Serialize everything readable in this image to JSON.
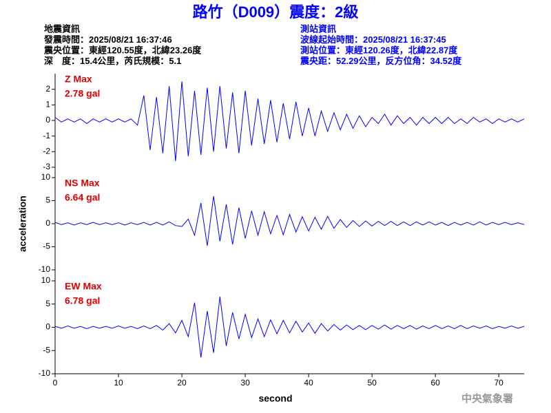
{
  "title": "路竹（D009）震度：2級",
  "info_left": [
    "地震資訊",
    "發震時間：2025/08/21 16:37:46",
    "震央位置：東經120.55度，北緯23.26度",
    "深　度：15.4公里，芮氏規模：5.1"
  ],
  "info_right": [
    "測站資訊",
    "波線起始時間：2025/08/21 16:37:45",
    "測站位置：東經120.26度，北緯22.87度",
    "震央距：52.29公里，反方位角：34.52度"
  ],
  "ylabel": "acceleration",
  "xlabel": "second",
  "watermark": "中央氣象署",
  "chart_data": [
    {
      "type": "line",
      "label": "Z Max",
      "max_label": "2.78 gal",
      "color": "#0000ff",
      "xlim": [
        0,
        74
      ],
      "ylim": [
        -3,
        3
      ],
      "yticks": [
        -3,
        -2,
        -1,
        0,
        1,
        2
      ],
      "x": [
        0,
        1,
        2,
        3,
        4,
        5,
        6,
        7,
        8,
        9,
        10,
        11,
        12,
        13,
        14,
        15,
        16,
        17,
        18,
        19,
        20,
        21,
        22,
        23,
        24,
        25,
        26,
        27,
        28,
        29,
        30,
        31,
        32,
        33,
        34,
        35,
        36,
        37,
        38,
        39,
        40,
        41,
        42,
        43,
        44,
        45,
        46,
        47,
        48,
        49,
        50,
        51,
        52,
        53,
        54,
        55,
        56,
        57,
        58,
        59,
        60,
        61,
        62,
        63,
        64,
        65,
        66,
        67,
        68,
        69,
        70,
        71,
        72,
        73,
        74
      ],
      "values": [
        0.2,
        -0.1,
        0.1,
        -0.1,
        0.1,
        -0.2,
        0.1,
        -0.1,
        0.1,
        -0.1,
        0.1,
        -0.1,
        0.1,
        -0.3,
        1.6,
        -1.9,
        1.5,
        -2.1,
        2.2,
        -2.6,
        2.5,
        -2.3,
        1.9,
        -2.2,
        2.1,
        -2.0,
        2.2,
        -1.8,
        1.8,
        -2.1,
        1.9,
        -1.6,
        1.4,
        -1.5,
        1.3,
        -1.4,
        1.1,
        -1.2,
        1.2,
        -1.0,
        0.8,
        -1.0,
        0.6,
        -0.7,
        0.5,
        -0.6,
        0.4,
        -0.5,
        0.3,
        -0.4,
        0.2,
        -0.2,
        0.4,
        -0.3,
        0.3,
        -0.2,
        0.2,
        -0.3,
        0.2,
        -0.2,
        0.2,
        -0.2,
        0.2,
        -0.2,
        0.1,
        -0.2,
        0.2,
        -0.1,
        0.1,
        -0.2,
        0.1,
        -0.1,
        0.1,
        -0.1,
        0.1
      ]
    },
    {
      "type": "line",
      "label": "NS Max",
      "max_label": "6.64 gal",
      "color": "#0000ff",
      "xlim": [
        0,
        74
      ],
      "ylim": [
        -10,
        10
      ],
      "yticks": [
        -10,
        -5,
        0,
        5,
        10
      ],
      "x": [
        0,
        1,
        2,
        3,
        4,
        5,
        6,
        7,
        8,
        9,
        10,
        11,
        12,
        13,
        14,
        15,
        16,
        17,
        18,
        19,
        20,
        21,
        22,
        23,
        24,
        25,
        26,
        27,
        28,
        29,
        30,
        31,
        32,
        33,
        34,
        35,
        36,
        37,
        38,
        39,
        40,
        41,
        42,
        43,
        44,
        45,
        46,
        47,
        48,
        49,
        50,
        51,
        52,
        53,
        54,
        55,
        56,
        57,
        58,
        59,
        60,
        61,
        62,
        63,
        64,
        65,
        66,
        67,
        68,
        69,
        70,
        71,
        72,
        73,
        74
      ],
      "values": [
        0.3,
        -0.2,
        0.2,
        -0.3,
        0.2,
        -0.2,
        0.3,
        -0.2,
        0.2,
        -0.2,
        0.2,
        -0.3,
        0.2,
        -0.2,
        0.3,
        -0.3,
        0.3,
        -0.3,
        0.4,
        -0.4,
        -0.6,
        1.0,
        -2.5,
        4.5,
        -4.8,
        6.0,
        -3.8,
        4.2,
        -4.5,
        3.5,
        -3.2,
        2.8,
        -2.5,
        2.6,
        -2.2,
        1.8,
        -2.4,
        2.0,
        -1.8,
        1.5,
        -1.6,
        1.4,
        -1.2,
        1.6,
        -1.0,
        0.9,
        -0.8,
        0.7,
        -0.6,
        0.6,
        -0.5,
        0.5,
        -0.4,
        0.5,
        -0.4,
        0.4,
        -0.4,
        0.4,
        -0.3,
        0.4,
        -0.3,
        0.3,
        -0.4,
        0.3,
        -0.3,
        0.3,
        -0.3,
        0.4,
        -0.3,
        0.3,
        -0.2,
        0.3,
        -0.2,
        0.2,
        -0.2
      ]
    },
    {
      "type": "line",
      "label": "EW Max",
      "max_label": "6.78 gal",
      "color": "#0000ff",
      "xlim": [
        0,
        74
      ],
      "ylim": [
        -10,
        10
      ],
      "yticks": [
        -10,
        -5,
        0,
        5,
        10
      ],
      "xticks": [
        0,
        10,
        20,
        30,
        40,
        50,
        60,
        70
      ],
      "x": [
        0,
        1,
        2,
        3,
        4,
        5,
        6,
        7,
        8,
        9,
        10,
        11,
        12,
        13,
        14,
        15,
        16,
        17,
        18,
        19,
        20,
        21,
        22,
        23,
        24,
        25,
        26,
        27,
        28,
        29,
        30,
        31,
        32,
        33,
        34,
        35,
        36,
        37,
        38,
        39,
        40,
        41,
        42,
        43,
        44,
        45,
        46,
        47,
        48,
        49,
        50,
        51,
        52,
        53,
        54,
        55,
        56,
        57,
        58,
        59,
        60,
        61,
        62,
        63,
        64,
        65,
        66,
        67,
        68,
        69,
        70,
        71,
        72,
        73,
        74
      ],
      "values": [
        0.2,
        -0.2,
        0.3,
        -0.2,
        0.2,
        -0.3,
        0.2,
        -0.2,
        0.2,
        -0.2,
        0.3,
        -0.2,
        0.2,
        -0.3,
        0.3,
        -0.3,
        0.4,
        -0.6,
        0.8,
        -1.2,
        1.5,
        -2.0,
        5.3,
        -6.5,
        3.5,
        -5.5,
        6.6,
        -4.0,
        3.2,
        -2.5,
        2.8,
        -2.2,
        1.8,
        -2.0,
        1.6,
        -1.4,
        1.5,
        -1.2,
        1.3,
        -1.0,
        0.9,
        -1.3,
        0.8,
        -0.8,
        0.6,
        -0.6,
        0.5,
        -0.5,
        0.4,
        -0.5,
        0.4,
        -0.4,
        0.5,
        -0.4,
        0.4,
        -0.3,
        0.4,
        -0.4,
        0.3,
        -0.3,
        0.4,
        -0.3,
        0.3,
        -0.3,
        0.4,
        -0.3,
        0.3,
        -0.2,
        0.3,
        -0.3,
        0.2,
        -0.2,
        0.3,
        -0.2,
        0.2
      ]
    }
  ]
}
